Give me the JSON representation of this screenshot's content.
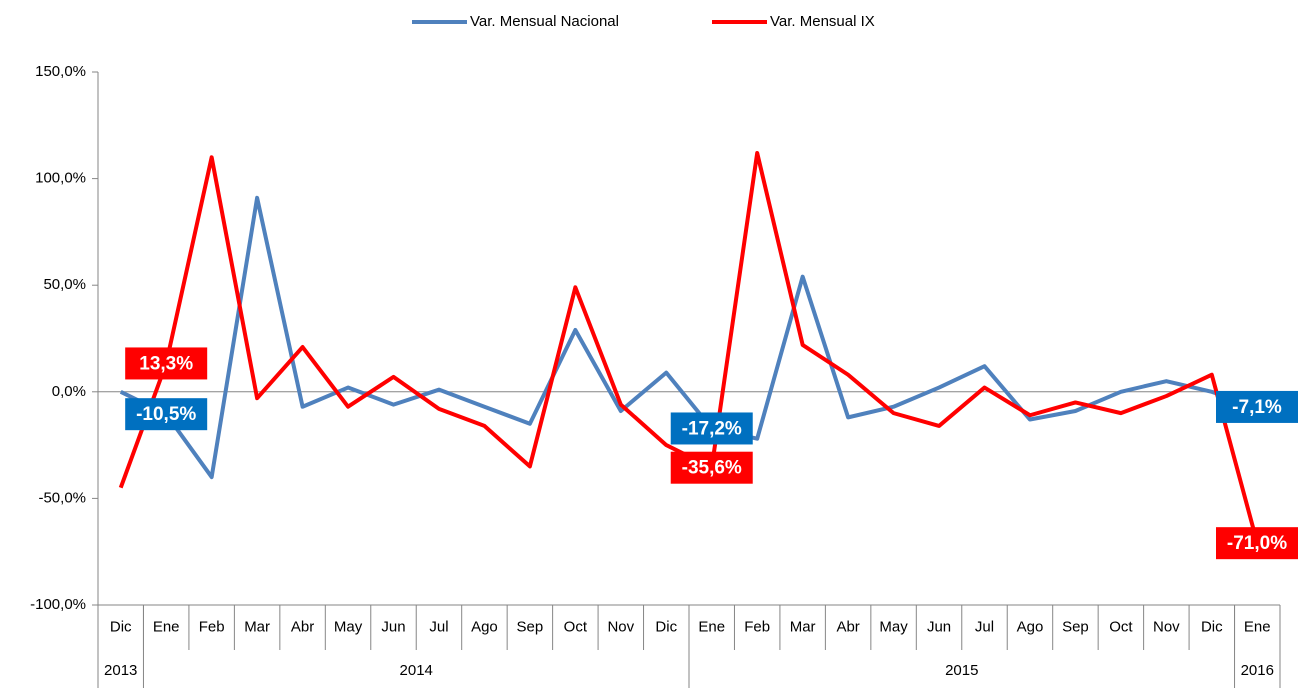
{
  "chart_data": {
    "type": "line",
    "categories": [
      "Dic",
      "Ene",
      "Feb",
      "Mar",
      "Abr",
      "May",
      "Jun",
      "Jul",
      "Ago",
      "Sep",
      "Oct",
      "Nov",
      "Dic",
      "Ene",
      "Feb",
      "Mar",
      "Abr",
      "May",
      "Jun",
      "Jul",
      "Ago",
      "Sep",
      "Oct",
      "Nov",
      "Dic",
      "Ene"
    ],
    "year_groups": [
      {
        "label": "2013",
        "count": 1
      },
      {
        "label": "2014",
        "count": 12
      },
      {
        "label": "2015",
        "count": 12
      },
      {
        "label": "2016",
        "count": 1
      }
    ],
    "series": [
      {
        "name": "Var. Mensual Nacional",
        "color": "#4f81bd",
        "label_color": "#0070c0",
        "values": [
          0,
          -10.5,
          -40,
          91,
          -7,
          2,
          -6,
          1,
          -7,
          -15,
          29,
          -9,
          9,
          -17.2,
          -22,
          54,
          -12,
          -7,
          2,
          12,
          -13,
          -9,
          0,
          5,
          0,
          -7.1
        ],
        "value_labels": [
          null,
          "-10,5%",
          null,
          null,
          null,
          null,
          null,
          null,
          null,
          null,
          null,
          null,
          null,
          "-17,2%",
          null,
          null,
          null,
          null,
          null,
          null,
          null,
          null,
          null,
          null,
          null,
          "-7,1%"
        ]
      },
      {
        "name": "Var. Mensual IX",
        "color": "#ff0000",
        "label_color": "#ff0000",
        "values": [
          -45,
          13.3,
          110,
          -3,
          21,
          -7,
          7,
          -8,
          -16,
          -35,
          49,
          -6,
          -25,
          -35.6,
          112,
          22,
          8,
          -10,
          -16,
          2,
          -11,
          -5,
          -10,
          -2,
          8,
          -71
        ],
        "value_labels": [
          null,
          "13,3%",
          null,
          null,
          null,
          null,
          null,
          null,
          null,
          null,
          null,
          null,
          null,
          "-35,6%",
          null,
          null,
          null,
          null,
          null,
          null,
          null,
          null,
          null,
          null,
          null,
          "-71,0%"
        ]
      }
    ],
    "ylim": [
      -100,
      150
    ],
    "yticks": [
      {
        "value": -100,
        "label": "-100,0%"
      },
      {
        "value": -50,
        "label": "-50,0%"
      },
      {
        "value": 0,
        "label": "0,0%"
      },
      {
        "value": 50,
        "label": "50,0%"
      },
      {
        "value": 100,
        "label": "100,0%"
      },
      {
        "value": 150,
        "label": "150,0%"
      }
    ],
    "legend": "top"
  }
}
